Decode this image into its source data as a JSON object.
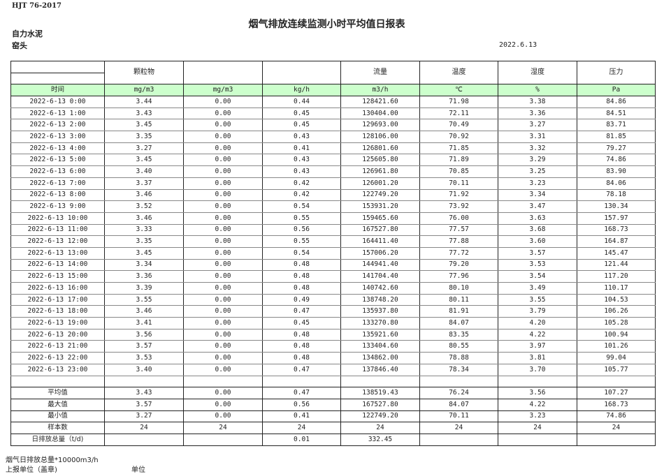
{
  "header": {
    "standard": "HJT  76-2017",
    "title": "烟气排放连续监测小时平均值日报表",
    "company": "自力水泥",
    "site": "窑头",
    "date": "2022.6.13"
  },
  "columns": [
    "",
    "颗粒物",
    "",
    "",
    "流量",
    "温度",
    "湿度",
    "压力"
  ],
  "units": [
    "时间",
    "mg/m3",
    "mg/m3",
    "kg/h",
    "m3/h",
    "℃",
    "%",
    "Pa"
  ],
  "colors": {
    "unit_row_bg": "#ccffcc",
    "border": "#222222"
  },
  "rows": [
    [
      "2022-6-13 0:00",
      "3.44",
      "0.00",
      "0.44",
      "128421.60",
      "71.98",
      "3.38",
      "84.86"
    ],
    [
      "2022-6-13 1:00",
      "3.43",
      "0.00",
      "0.45",
      "130404.00",
      "72.11",
      "3.36",
      "84.51"
    ],
    [
      "2022-6-13 2:00",
      "3.45",
      "0.00",
      "0.45",
      "129693.00",
      "70.49",
      "3.27",
      "83.71"
    ],
    [
      "2022-6-13 3:00",
      "3.35",
      "0.00",
      "0.43",
      "128106.00",
      "70.92",
      "3.31",
      "81.85"
    ],
    [
      "2022-6-13 4:00",
      "3.27",
      "0.00",
      "0.41",
      "126801.60",
      "71.85",
      "3.32",
      "79.27"
    ],
    [
      "2022-6-13 5:00",
      "3.45",
      "0.00",
      "0.43",
      "125605.80",
      "71.89",
      "3.29",
      "74.86"
    ],
    [
      "2022-6-13 6:00",
      "3.40",
      "0.00",
      "0.43",
      "126961.80",
      "70.85",
      "3.25",
      "83.90"
    ],
    [
      "2022-6-13 7:00",
      "3.37",
      "0.00",
      "0.42",
      "126001.20",
      "70.11",
      "3.23",
      "84.06"
    ],
    [
      "2022-6-13 8:00",
      "3.46",
      "0.00",
      "0.42",
      "122749.20",
      "71.92",
      "3.34",
      "78.18"
    ],
    [
      "2022-6-13 9:00",
      "3.52",
      "0.00",
      "0.54",
      "153931.20",
      "73.92",
      "3.47",
      "130.34"
    ],
    [
      "2022-6-13 10:00",
      "3.46",
      "0.00",
      "0.55",
      "159465.60",
      "76.00",
      "3.63",
      "157.97"
    ],
    [
      "2022-6-13 11:00",
      "3.33",
      "0.00",
      "0.56",
      "167527.80",
      "77.57",
      "3.68",
      "168.73"
    ],
    [
      "2022-6-13 12:00",
      "3.35",
      "0.00",
      "0.55",
      "164411.40",
      "77.88",
      "3.60",
      "164.87"
    ],
    [
      "2022-6-13 13:00",
      "3.45",
      "0.00",
      "0.54",
      "157006.20",
      "77.72",
      "3.57",
      "145.47"
    ],
    [
      "2022-6-13 14:00",
      "3.34",
      "0.00",
      "0.48",
      "144941.40",
      "79.20",
      "3.53",
      "121.44"
    ],
    [
      "2022-6-13 15:00",
      "3.36",
      "0.00",
      "0.48",
      "141704.40",
      "77.96",
      "3.54",
      "117.20"
    ],
    [
      "2022-6-13 16:00",
      "3.39",
      "0.00",
      "0.48",
      "140742.60",
      "80.10",
      "3.49",
      "110.17"
    ],
    [
      "2022-6-13 17:00",
      "3.55",
      "0.00",
      "0.49",
      "138748.20",
      "80.11",
      "3.55",
      "104.53"
    ],
    [
      "2022-6-13 18:00",
      "3.46",
      "0.00",
      "0.47",
      "135937.80",
      "81.91",
      "3.79",
      "106.26"
    ],
    [
      "2022-6-13 19:00",
      "3.41",
      "0.00",
      "0.45",
      "133270.80",
      "84.07",
      "4.20",
      "105.28"
    ],
    [
      "2022-6-13 20:00",
      "3.56",
      "0.00",
      "0.48",
      "135921.60",
      "83.35",
      "4.22",
      "100.94"
    ],
    [
      "2022-6-13 21:00",
      "3.57",
      "0.00",
      "0.48",
      "133404.60",
      "80.55",
      "3.97",
      "101.26"
    ],
    [
      "2022-6-13 22:00",
      "3.53",
      "0.00",
      "0.48",
      "134862.00",
      "78.88",
      "3.81",
      "99.04"
    ],
    [
      "2022-6-13 23:00",
      "3.40",
      "0.00",
      "0.47",
      "137846.40",
      "78.34",
      "3.70",
      "105.77"
    ]
  ],
  "summary": [
    [
      "平均值",
      "3.43",
      "0.00",
      "0.47",
      "138519.43",
      "76.24",
      "3.56",
      "107.27"
    ],
    [
      "最大值",
      "3.57",
      "0.00",
      "0.56",
      "167527.80",
      "84.07",
      "4.22",
      "168.73"
    ],
    [
      "最小值",
      "3.27",
      "0.00",
      "0.41",
      "122749.20",
      "70.11",
      "3.23",
      "74.86"
    ],
    [
      "样本数",
      "24",
      "24",
      "24",
      "24",
      "24",
      "24",
      "24"
    ],
    [
      "日排放总量（t/d)",
      "",
      "",
      "0.01",
      "332.45",
      "",
      "",
      ""
    ]
  ],
  "footer": {
    "note": "烟气日排放总量*10000m3/h",
    "reporter": "上报单位（盖章)",
    "unit_label": "单位"
  }
}
